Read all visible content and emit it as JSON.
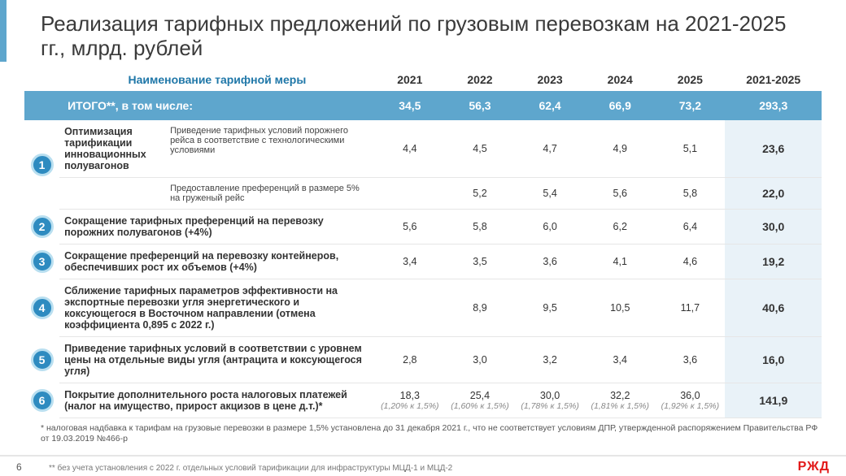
{
  "colors": {
    "accent": "#5ea6cd",
    "badge_bg": "#2e8bc0",
    "badge_ring": "#b9dff0",
    "total_col_bg": "#e9f2f8",
    "title_color": "#3a3a3a",
    "header_name_color": "#1f77a8",
    "row_border": "#e6e6e6",
    "logo_color": "#e21a1a"
  },
  "typography": {
    "title_fontsize": 26,
    "header_fontsize": 14,
    "body_fontsize": 12.5,
    "sub_fontsize": 11,
    "footnote_fontsize": 10.5
  },
  "title": "Реализация тарифных предложений по грузовым перевозкам на 2021-2025 гг., млрд. рублей",
  "columns": {
    "name": "Наименование тарифной меры",
    "y2021": "2021",
    "y2022": "2022",
    "y2023": "2023",
    "y2024": "2024",
    "y2025": "2025",
    "total": "2021-2025"
  },
  "total_row": {
    "label": "ИТОГО**, в том числе:",
    "y2021": "34,5",
    "y2022": "56,3",
    "y2023": "62,4",
    "y2024": "66,9",
    "y2025": "73,2",
    "total": "293,3"
  },
  "group1": {
    "badge": "1",
    "title": "Оптимизация тарификации инновационных полувагонов",
    "sub_a": {
      "label": "Приведение тарифных условий порожнего рейса в соответствие с технологическими условиями",
      "y2021": "4,4",
      "y2022": "4,5",
      "y2023": "4,7",
      "y2024": "4,9",
      "y2025": "5,1",
      "total": "23,6"
    },
    "sub_b": {
      "label": "Предоставление преференций в размере 5% на груженый рейс",
      "y2021": "",
      "y2022": "5,2",
      "y2023": "5,4",
      "y2024": "5,6",
      "y2025": "5,8",
      "total": "22,0"
    }
  },
  "rows": {
    "r2": {
      "badge": "2",
      "name": "Сокращение тарифных преференций на перевозку порожних полувагонов (+4%)",
      "y2021": "5,6",
      "y2022": "5,8",
      "y2023": "6,0",
      "y2024": "6,2",
      "y2025": "6,4",
      "total": "30,0"
    },
    "r3": {
      "badge": "3",
      "name": "Сокращение преференций на перевозку контейнеров, обеспечивших рост их объемов (+4%)",
      "y2021": "3,4",
      "y2022": "3,5",
      "y2023": "3,6",
      "y2024": "4,1",
      "y2025": "4,6",
      "total": "19,2"
    },
    "r4": {
      "badge": "4",
      "name": "Сближение тарифных параметров эффективности на экспортные перевозки угля энергетического и коксующегося в Восточном направлении (отмена коэффициента 0,895 с 2022 г.)",
      "y2021": "",
      "y2022": "8,9",
      "y2023": "9,5",
      "y2024": "10,5",
      "y2025": "11,7",
      "total": "40,6"
    },
    "r5": {
      "badge": "5",
      "name": "Приведение тарифных условий в соответствии с уровнем цены на отдельные виды угля (антрацита и коксующегося угля)",
      "y2021": "2,8",
      "y2022": "3,0",
      "y2023": "3,2",
      "y2024": "3,4",
      "y2025": "3,6",
      "total": "16,0"
    },
    "r6": {
      "badge": "6",
      "name": "Покрытие дополнительного роста налоговых платежей (налог на имущество, прирост акцизов в цене д.т.)*",
      "y2021": "18,3",
      "y2022": "25,4",
      "y2023": "30,0",
      "y2024": "32,2",
      "y2025": "36,0",
      "total": "141,9",
      "paren": {
        "y2021": "(1,20% к 1,5%)",
        "y2022": "(1,60% к 1,5%)",
        "y2023": "(1,78% к 1,5%)",
        "y2024": "(1,81% к 1,5%)",
        "y2025": "(1,92% к 1,5%)"
      }
    }
  },
  "footnotes": {
    "f1": "* налоговая надбавка к тарифам на грузовые перевозки в размере 1,5% установлена до 31 декабря 2021 г., что не соответствует условиям ДПР, утвержденной распоряжением Правительства РФ от 19.03.2019 №466-р"
  },
  "footer": {
    "page": "6",
    "note": "** без учета установления с 2022 г. отдельных условий тарификации для инфраструктуры МЦД-1 и МЦД-2",
    "logo": "РЖД"
  }
}
